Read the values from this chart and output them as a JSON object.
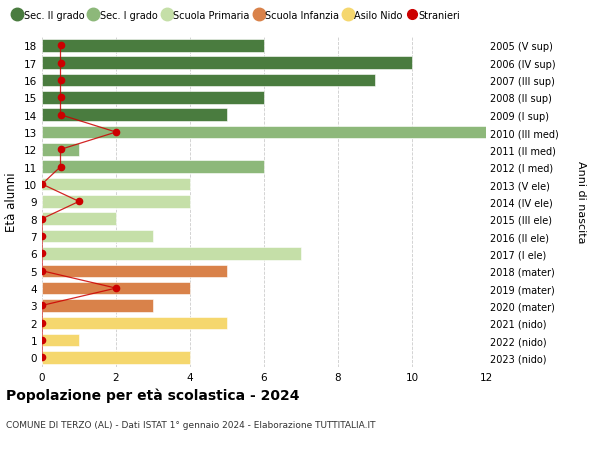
{
  "ages": [
    18,
    17,
    16,
    15,
    14,
    13,
    12,
    11,
    10,
    9,
    8,
    7,
    6,
    5,
    4,
    3,
    2,
    1,
    0
  ],
  "years": [
    "2005 (V sup)",
    "2006 (IV sup)",
    "2007 (III sup)",
    "2008 (II sup)",
    "2009 (I sup)",
    "2010 (III med)",
    "2011 (II med)",
    "2012 (I med)",
    "2013 (V ele)",
    "2014 (IV ele)",
    "2015 (III ele)",
    "2016 (II ele)",
    "2017 (I ele)",
    "2018 (mater)",
    "2019 (mater)",
    "2020 (mater)",
    "2021 (nido)",
    "2022 (nido)",
    "2023 (nido)"
  ],
  "bar_values": [
    6,
    10,
    9,
    6,
    5,
    12,
    1,
    6,
    4,
    4,
    2,
    3,
    7,
    5,
    4,
    3,
    5,
    1,
    4
  ],
  "bar_colors": [
    "#4a7c3f",
    "#4a7c3f",
    "#4a7c3f",
    "#4a7c3f",
    "#4a7c3f",
    "#8db87a",
    "#8db87a",
    "#8db87a",
    "#c5dfa8",
    "#c5dfa8",
    "#c5dfa8",
    "#c5dfa8",
    "#c5dfa8",
    "#d9824a",
    "#d9824a",
    "#d9824a",
    "#f5d76e",
    "#f5d76e",
    "#f5d76e"
  ],
  "stranieri_x": [
    0.5,
    0.5,
    0.5,
    0.5,
    0.5,
    2.0,
    0.5,
    0.5,
    0.0,
    1.0,
    0.0,
    0.0,
    0.0,
    0.0,
    2.0,
    0.0,
    0.0,
    0.0,
    0.0
  ],
  "legend_labels": [
    "Sec. II grado",
    "Sec. I grado",
    "Scuola Primaria",
    "Scuola Infanzia",
    "Asilo Nido",
    "Stranieri"
  ],
  "legend_colors": [
    "#4a7c3f",
    "#8db87a",
    "#c5dfa8",
    "#d9824a",
    "#f5d76e",
    "#cc0000"
  ],
  "title": "Popolazione per età scolastica - 2024",
  "subtitle": "COMUNE DI TERZO (AL) - Dati ISTAT 1° gennaio 2024 - Elaborazione TUTTITALIA.IT",
  "ylabel_left": "Età alunni",
  "ylabel_right": "Anni di nascita",
  "xlim": [
    0,
    12
  ],
  "ylim": [
    -0.55,
    18.55
  ],
  "xticks": [
    0,
    2,
    4,
    6,
    8,
    10,
    12
  ],
  "bg_color": "#ffffff",
  "grid_color": "#cccccc",
  "stranieri_color": "#cc0000",
  "bar_height": 0.72
}
